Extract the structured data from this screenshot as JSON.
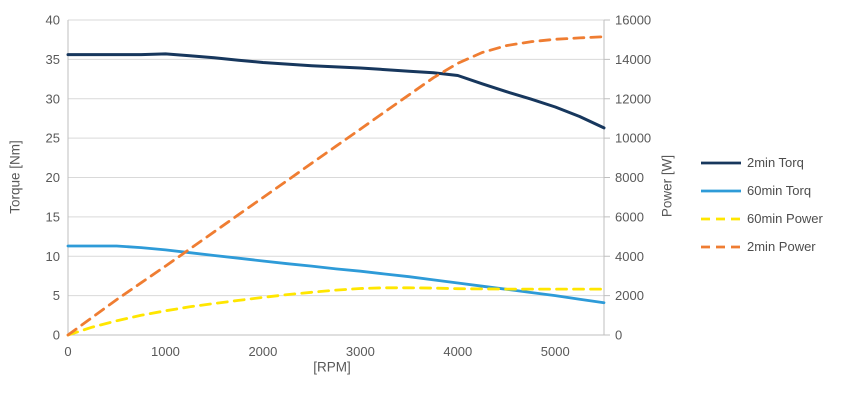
{
  "chart_data": {
    "type": "line",
    "title": "",
    "xlabel": "[RPM]",
    "ylabel_left": "Torque [Nm]",
    "ylabel_right": "Power [W]",
    "grid": true,
    "legend_position": "right",
    "x_range": [
      0,
      5500
    ],
    "x_ticks": [
      0,
      1000,
      2000,
      3000,
      4000,
      5000
    ],
    "y_left_range": [
      0,
      40
    ],
    "y_left_ticks": [
      0,
      5,
      10,
      15,
      20,
      25,
      30,
      35,
      40
    ],
    "y_right_range": [
      0,
      16000
    ],
    "y_right_ticks": [
      0,
      2000,
      4000,
      6000,
      8000,
      10000,
      12000,
      14000,
      16000
    ],
    "colors": {
      "gridline": "#d9d9d9",
      "axis_line": "#bfbfbf",
      "tick_label": "#595959",
      "legend_text": "#4d4d4d"
    },
    "series": [
      {
        "name": "2min Torq",
        "axis": "left",
        "style": "solid",
        "color": "#17375D",
        "points": [
          [
            0,
            35.6
          ],
          [
            250,
            35.6
          ],
          [
            500,
            35.6
          ],
          [
            750,
            35.6
          ],
          [
            1000,
            35.7
          ],
          [
            1250,
            35.45
          ],
          [
            1500,
            35.2
          ],
          [
            1750,
            34.9
          ],
          [
            2000,
            34.6
          ],
          [
            2250,
            34.4
          ],
          [
            2500,
            34.2
          ],
          [
            2750,
            34.05
          ],
          [
            3000,
            33.9
          ],
          [
            3250,
            33.7
          ],
          [
            3500,
            33.5
          ],
          [
            3750,
            33.3
          ],
          [
            4000,
            32.95
          ],
          [
            4250,
            31.9
          ],
          [
            4500,
            30.9
          ],
          [
            4750,
            29.95
          ],
          [
            5000,
            28.95
          ],
          [
            5250,
            27.75
          ],
          [
            5500,
            26.3
          ]
        ]
      },
      {
        "name": "60min Torq",
        "axis": "left",
        "style": "solid",
        "color": "#2E9BD8",
        "points": [
          [
            0,
            11.3
          ],
          [
            250,
            11.3
          ],
          [
            500,
            11.3
          ],
          [
            750,
            11.1
          ],
          [
            1000,
            10.8
          ],
          [
            1250,
            10.45
          ],
          [
            1500,
            10.1
          ],
          [
            1750,
            9.75
          ],
          [
            2000,
            9.4
          ],
          [
            2250,
            9.05
          ],
          [
            2500,
            8.75
          ],
          [
            2750,
            8.4
          ],
          [
            3000,
            8.1
          ],
          [
            3250,
            7.75
          ],
          [
            3500,
            7.4
          ],
          [
            3750,
            7.0
          ],
          [
            4000,
            6.6
          ],
          [
            4250,
            6.2
          ],
          [
            4500,
            5.8
          ],
          [
            4750,
            5.4
          ],
          [
            5000,
            5.0
          ],
          [
            5250,
            4.55
          ],
          [
            5500,
            4.1
          ]
        ]
      },
      {
        "name": "60min Power",
        "axis": "right",
        "style": "dashed",
        "color": "#FFE600",
        "points": [
          [
            0,
            0
          ],
          [
            250,
            400
          ],
          [
            500,
            720
          ],
          [
            750,
            1000
          ],
          [
            1000,
            1230
          ],
          [
            1250,
            1430
          ],
          [
            1500,
            1600
          ],
          [
            1750,
            1760
          ],
          [
            2000,
            1910
          ],
          [
            2250,
            2050
          ],
          [
            2500,
            2170
          ],
          [
            2750,
            2280
          ],
          [
            3000,
            2360
          ],
          [
            3250,
            2400
          ],
          [
            3500,
            2400
          ],
          [
            3750,
            2380
          ],
          [
            4000,
            2350
          ],
          [
            4250,
            2340
          ],
          [
            4500,
            2330
          ],
          [
            4750,
            2330
          ],
          [
            5000,
            2330
          ],
          [
            5250,
            2330
          ],
          [
            5500,
            2330
          ]
        ]
      },
      {
        "name": "2min Power",
        "axis": "right",
        "style": "dashed",
        "color": "#EF7D32",
        "points": [
          [
            0,
            0
          ],
          [
            250,
            900
          ],
          [
            500,
            1800
          ],
          [
            750,
            2650
          ],
          [
            1000,
            3500
          ],
          [
            1250,
            4370
          ],
          [
            1500,
            5240
          ],
          [
            1750,
            6110
          ],
          [
            2000,
            6980
          ],
          [
            2250,
            7850
          ],
          [
            2500,
            8720
          ],
          [
            2750,
            9590
          ],
          [
            3000,
            10460
          ],
          [
            3250,
            11330
          ],
          [
            3500,
            12200
          ],
          [
            3750,
            13070
          ],
          [
            4000,
            13800
          ],
          [
            4250,
            14350
          ],
          [
            4500,
            14700
          ],
          [
            4750,
            14900
          ],
          [
            5000,
            15020
          ],
          [
            5250,
            15090
          ],
          [
            5500,
            15150
          ]
        ]
      }
    ]
  }
}
